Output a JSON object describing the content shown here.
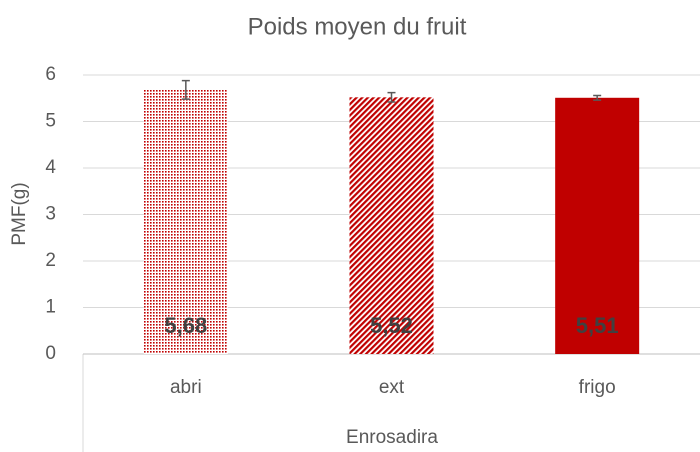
{
  "chart_data": {
    "type": "bar",
    "title": "Poids moyen du fruit",
    "ylabel": "PMF(g)",
    "xlabel": "Enrosadira",
    "categories": [
      "abri",
      "ext",
      "frigo"
    ],
    "values": [
      5.68,
      5.52,
      5.51
    ],
    "value_labels": [
      "5,68",
      "5,52",
      "5,51"
    ],
    "errors": [
      0.2,
      0.1,
      0.05
    ],
    "color": "#c00000",
    "patterns": [
      "dots",
      "diagonal",
      "solid"
    ],
    "ylim": [
      0,
      6
    ],
    "yticks": [
      0,
      1,
      2,
      3,
      4,
      5,
      6
    ],
    "grid": true
  }
}
